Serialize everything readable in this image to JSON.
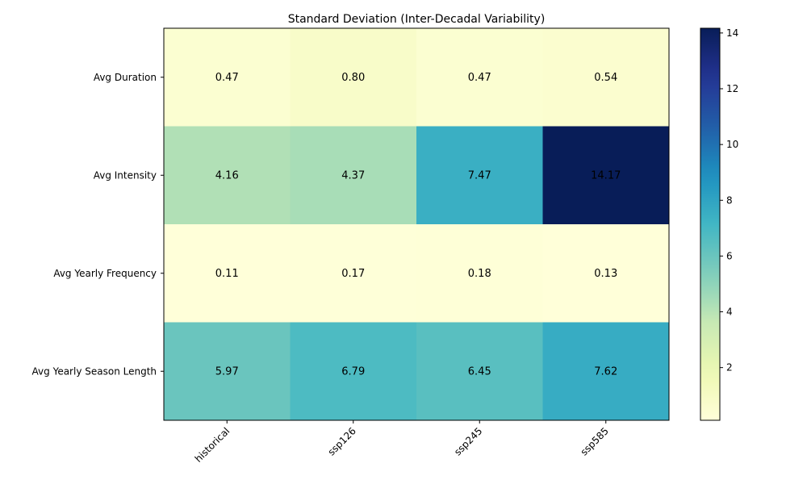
{
  "chart_data": {
    "type": "heatmap",
    "title": "Standard Deviation (Inter-Decadal Variability)",
    "xlabel": "",
    "ylabel": "",
    "columns": [
      "historical",
      "ssp126",
      "ssp245",
      "ssp585"
    ],
    "rows": [
      "Avg Duration",
      "Avg Intensity",
      "Avg Yearly Frequency",
      "Avg Yearly Season Length"
    ],
    "values": [
      [
        0.47,
        0.8,
        0.47,
        0.54
      ],
      [
        4.16,
        4.37,
        7.47,
        14.17
      ],
      [
        0.11,
        0.17,
        0.18,
        0.13
      ],
      [
        5.97,
        6.79,
        6.45,
        7.62
      ]
    ],
    "cell_labels": [
      [
        "0.47",
        "0.80",
        "0.47",
        "0.54"
      ],
      [
        "4.16",
        "4.37",
        "7.47",
        "14.17"
      ],
      [
        "0.11",
        "0.17",
        "0.18",
        "0.13"
      ],
      [
        "5.97",
        "6.79",
        "6.45",
        "7.62"
      ]
    ],
    "colormap": "YlGnBu",
    "colorbar": {
      "min": 0.11,
      "max": 14.17,
      "ticks": [
        2,
        4,
        6,
        8,
        10,
        12,
        14
      ],
      "tick_labels": [
        "2",
        "4",
        "6",
        "8",
        "10",
        "12",
        "14"
      ]
    },
    "grid": false,
    "legend": "colorbar-right"
  }
}
